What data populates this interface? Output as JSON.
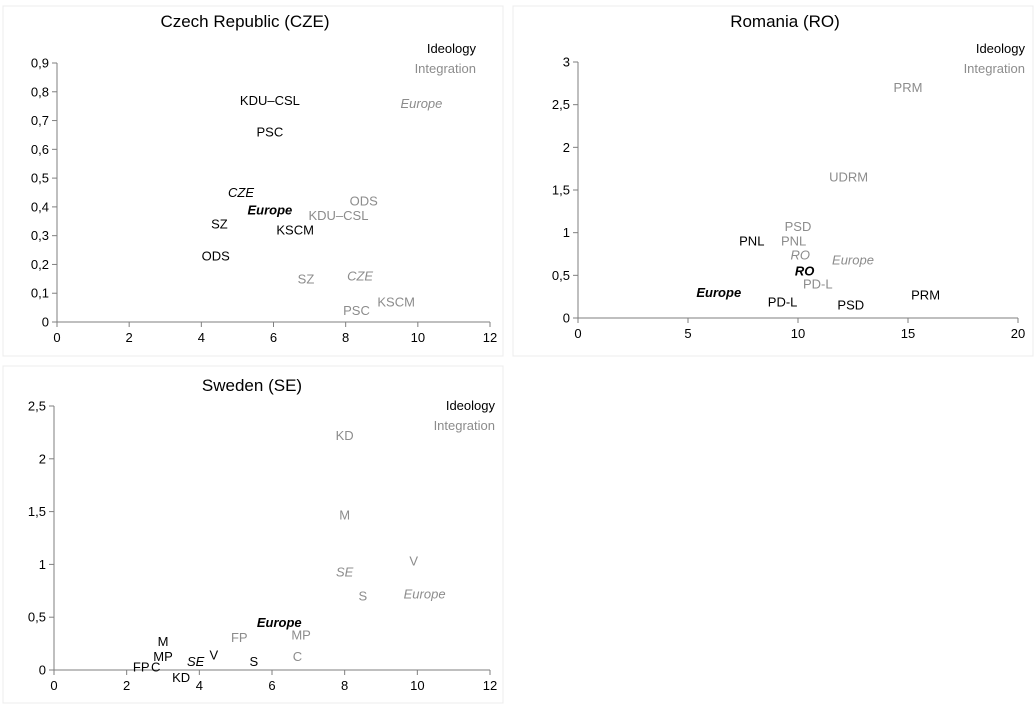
{
  "colors": {
    "ideology": "#000000",
    "integration": "#8c8c8c",
    "axis": "#7f7f7f"
  },
  "chart_data": [
    {
      "type": "scatter",
      "title": "Czech Republic (CZE)",
      "xlim": [
        0,
        12
      ],
      "ylim": [
        0,
        0.9
      ],
      "xticks": [
        0,
        2,
        4,
        6,
        8,
        10,
        12
      ],
      "yticks": [
        0,
        0.1,
        0.2,
        0.3,
        0.4,
        0.5,
        0.6,
        0.7,
        0.8,
        0.9
      ],
      "tick_decimal": ",",
      "legend": [
        "Ideology",
        "Integration"
      ],
      "series": [
        {
          "name": "Ideology",
          "points": [
            {
              "label": "KDU–CSL",
              "x": 5.9,
              "y": 0.77
            },
            {
              "label": "PSC",
              "x": 5.9,
              "y": 0.66
            },
            {
              "label": "CZE",
              "x": 5.1,
              "y": 0.45,
              "italic": true
            },
            {
              "label": "Europe",
              "x": 5.9,
              "y": 0.39,
              "italic": true,
              "bold": true
            },
            {
              "label": "SZ",
              "x": 4.5,
              "y": 0.34
            },
            {
              "label": "KSCM",
              "x": 6.6,
              "y": 0.32
            },
            {
              "label": "ODS",
              "x": 4.4,
              "y": 0.23
            }
          ]
        },
        {
          "name": "Integration",
          "points": [
            {
              "label": "Europe",
              "x": 10.1,
              "y": 0.76,
              "italic": true
            },
            {
              "label": "ODS",
              "x": 8.5,
              "y": 0.42
            },
            {
              "label": "KDU–CSL",
              "x": 7.8,
              "y": 0.37
            },
            {
              "label": "SZ",
              "x": 6.9,
              "y": 0.15
            },
            {
              "label": "CZE",
              "x": 8.4,
              "y": 0.16,
              "italic": true
            },
            {
              "label": "KSCM",
              "x": 9.4,
              "y": 0.07
            },
            {
              "label": "PSC",
              "x": 8.3,
              "y": 0.04
            }
          ]
        }
      ]
    },
    {
      "type": "scatter",
      "title": "Romania (RO)",
      "xlim": [
        0,
        20
      ],
      "ylim": [
        0,
        3
      ],
      "xticks": [
        0,
        5,
        10,
        15,
        20
      ],
      "yticks": [
        0,
        0.5,
        1,
        1.5,
        2,
        2.5,
        3
      ],
      "tick_decimal": ",",
      "legend": [
        "Ideology",
        "Integration"
      ],
      "series": [
        {
          "name": "Ideology",
          "points": [
            {
              "label": "PNL",
              "x": 7.9,
              "y": 0.9
            },
            {
              "label": "RO",
              "x": 10.3,
              "y": 0.55,
              "italic": true,
              "bold": true
            },
            {
              "label": "Europe",
              "x": 6.4,
              "y": 0.3,
              "italic": true,
              "bold": true
            },
            {
              "label": "PD-L",
              "x": 9.3,
              "y": 0.19
            },
            {
              "label": "PSD",
              "x": 12.4,
              "y": 0.15
            },
            {
              "label": "PRM",
              "x": 15.8,
              "y": 0.27
            }
          ]
        },
        {
          "name": "Integration",
          "points": [
            {
              "label": "PRM",
              "x": 15.0,
              "y": 2.7
            },
            {
              "label": "UDRM",
              "x": 12.3,
              "y": 1.65
            },
            {
              "label": "PSD",
              "x": 10.0,
              "y": 1.07
            },
            {
              "label": "PNL",
              "x": 9.8,
              "y": 0.9
            },
            {
              "label": "RO",
              "x": 10.1,
              "y": 0.74,
              "italic": true
            },
            {
              "label": "Europe",
              "x": 12.5,
              "y": 0.68,
              "italic": true
            },
            {
              "label": "PD-L",
              "x": 10.9,
              "y": 0.4
            }
          ]
        }
      ]
    },
    {
      "type": "scatter",
      "title": "Sweden (SE)",
      "xlim": [
        0,
        12
      ],
      "ylim": [
        0,
        2.5
      ],
      "xticks": [
        0,
        2,
        4,
        6,
        8,
        10,
        12
      ],
      "yticks": [
        0,
        0.5,
        1,
        1.5,
        2,
        2.5
      ],
      "tick_decimal": ",",
      "legend": [
        "Ideology",
        "Integration"
      ],
      "series": [
        {
          "name": "Ideology",
          "points": [
            {
              "label": "Europe",
              "x": 6.2,
              "y": 0.45,
              "italic": true,
              "bold": true
            },
            {
              "label": "M",
              "x": 3.0,
              "y": 0.27
            },
            {
              "label": "MP",
              "x": 3.0,
              "y": 0.13
            },
            {
              "label": "V",
              "x": 4.4,
              "y": 0.14
            },
            {
              "label": "SE",
              "x": 3.9,
              "y": 0.08,
              "italic": true
            },
            {
              "label": "S",
              "x": 5.5,
              "y": 0.08
            },
            {
              "label": "FP",
              "x": 2.4,
              "y": 0.03
            },
            {
              "label": "C",
              "x": 2.8,
              "y": 0.03
            },
            {
              "label": "KD",
              "x": 3.5,
              "y": -0.07
            }
          ]
        },
        {
          "name": "Integration",
          "points": [
            {
              "label": "KD",
              "x": 8.0,
              "y": 2.22
            },
            {
              "label": "M",
              "x": 8.0,
              "y": 1.47
            },
            {
              "label": "V",
              "x": 9.9,
              "y": 1.03
            },
            {
              "label": "SE",
              "x": 8.0,
              "y": 0.93,
              "italic": true
            },
            {
              "label": "S",
              "x": 8.5,
              "y": 0.7
            },
            {
              "label": "Europe",
              "x": 10.2,
              "y": 0.72,
              "italic": true
            },
            {
              "label": "FP",
              "x": 5.1,
              "y": 0.31
            },
            {
              "label": "MP",
              "x": 6.8,
              "y": 0.33
            },
            {
              "label": "C",
              "x": 6.7,
              "y": 0.13
            }
          ]
        }
      ]
    }
  ]
}
